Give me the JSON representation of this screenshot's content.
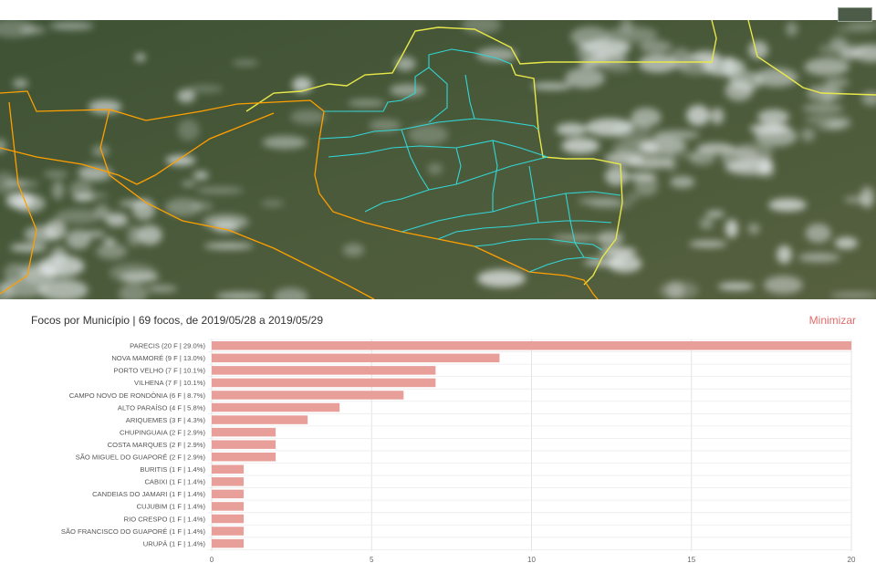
{
  "panel": {
    "title": "Focos por Município | 69 focos, de 2019/05/28 a 2019/05/29",
    "minimize_label": "Minimizar"
  },
  "colors": {
    "bar": "#e99f99",
    "minimize": "#e06c6c",
    "state_border": "#ffa000",
    "municipality_border": "#33d6d6",
    "country_border": "#e8e84a"
  },
  "chart_data": {
    "type": "bar",
    "orientation": "horizontal",
    "title": "",
    "xlabel": "",
    "ylabel": "",
    "xlim": [
      0,
      20
    ],
    "xticks": [
      0,
      5,
      10,
      15,
      20
    ],
    "grid": true,
    "categories": [
      "PARECIS (20 F | 29.0%)",
      "NOVA MAMORÉ (9 F | 13.0%)",
      "PORTO VELHO (7 F | 10.1%)",
      "VILHENA (7 F | 10.1%)",
      "CAMPO NOVO DE RONDÔNIA (6 F | 8.7%)",
      "ALTO PARAÍSO (4 F | 5.8%)",
      "ARIQUEMES (3 F | 4.3%)",
      "CHUPINGUAIA (2 F | 2.9%)",
      "COSTA MARQUES (2 F | 2.9%)",
      "SÃO MIGUEL DO GUAPORÉ (2 F | 2.9%)",
      "BURITIS (1 F | 1.4%)",
      "CABIXI (1 F | 1.4%)",
      "CANDEIAS DO JAMARI (1 F | 1.4%)",
      "CUJUBIM (1 F | 1.4%)",
      "RIO CRESPO (1 F | 1.4%)",
      "SÃO FRANCISCO DO GUAPORÉ (1 F | 1.4%)",
      "URUPÁ (1 F | 1.4%)"
    ],
    "values": [
      20,
      9,
      7,
      7,
      6,
      4,
      3,
      2,
      2,
      2,
      1,
      1,
      1,
      1,
      1,
      1,
      1
    ]
  }
}
